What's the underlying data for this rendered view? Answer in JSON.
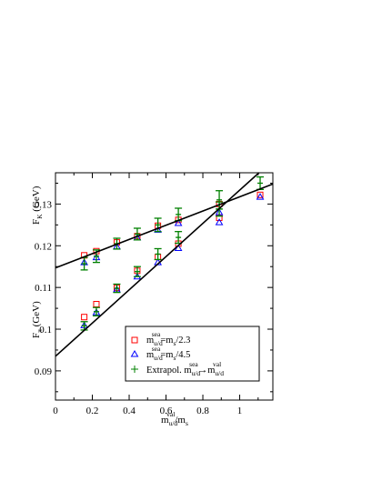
{
  "chart_data": {
    "type": "scatter",
    "xlim": [
      0,
      1.18
    ],
    "ylim": [
      0.083,
      0.1375
    ],
    "x_ticks": [
      "0",
      "0.2",
      "0.4",
      "0.6",
      "0.8",
      "1"
    ],
    "x_tick_values": [
      0,
      0.2,
      0.4,
      0.6,
      0.8,
      1.0
    ],
    "y_ticks": [
      "0.09",
      "0.1",
      "0.11",
      "0.12",
      "0.13"
    ],
    "y_tick_values": [
      0.09,
      0.1,
      0.11,
      0.12,
      0.13
    ],
    "xlabel": {
      "main": "m",
      "sub1": "u/d",
      "sup": "val",
      "tail": "/m",
      "sub2": "s"
    },
    "ylabel_upper": {
      "main": "F",
      "sub": "K",
      "tail": " (GeV)"
    },
    "ylabel_lower": {
      "main": "F",
      "sub": "π",
      "tail": " (GeV)"
    },
    "grid": false,
    "legend_position": "bottom-right",
    "series": [
      {
        "marker": "square",
        "color": "#ff0000",
        "legend": {
          "main": "m",
          "sub": "u/d",
          "sup": "sea",
          "tail": "=m",
          "sub2": "s",
          "end": "/2.3"
        },
        "points": [
          {
            "x": 0.156,
            "y": 0.1177
          },
          {
            "x": 0.222,
            "y": 0.1187
          },
          {
            "x": 0.333,
            "y": 0.1208
          },
          {
            "x": 0.444,
            "y": 0.1223
          },
          {
            "x": 0.556,
            "y": 0.1248
          },
          {
            "x": 0.667,
            "y": 0.1262
          },
          {
            "x": 0.889,
            "y": 0.1267
          },
          {
            "x": 1.111,
            "y": 0.1322
          },
          {
            "x": 0.156,
            "y": 0.1029
          },
          {
            "x": 0.222,
            "y": 0.106
          },
          {
            "x": 0.333,
            "y": 0.1099
          },
          {
            "x": 0.444,
            "y": 0.114
          },
          {
            "x": 0.556,
            "y": 0.1173
          },
          {
            "x": 0.667,
            "y": 0.1205
          },
          {
            "x": 0.889,
            "y": 0.13
          }
        ]
      },
      {
        "marker": "triangle",
        "color": "#0000ff",
        "legend": {
          "main": "m",
          "sub": "u/d",
          "sup": "sea",
          "tail": "=m",
          "sub2": "s",
          "end": "/4.5"
        },
        "points": [
          {
            "x": 0.156,
            "y": 0.116
          },
          {
            "x": 0.222,
            "y": 0.1172
          },
          {
            "x": 0.333,
            "y": 0.1198
          },
          {
            "x": 0.444,
            "y": 0.1219
          },
          {
            "x": 0.556,
            "y": 0.1238
          },
          {
            "x": 0.667,
            "y": 0.1254
          },
          {
            "x": 0.889,
            "y": 0.1256
          },
          {
            "x": 1.111,
            "y": 0.1317
          },
          {
            "x": 0.156,
            "y": 0.1009
          },
          {
            "x": 0.222,
            "y": 0.104
          },
          {
            "x": 0.333,
            "y": 0.1095
          },
          {
            "x": 0.444,
            "y": 0.1126
          },
          {
            "x": 0.556,
            "y": 0.116
          },
          {
            "x": 0.667,
            "y": 0.1194
          },
          {
            "x": 0.889,
            "y": 0.128
          }
        ]
      },
      {
        "marker": "plus",
        "color": "#008000",
        "legend": {
          "main": "Extrapol. m",
          "sub": "u/d",
          "sup": "sea",
          "tail": "→m",
          "sub2": "u/d",
          "sup2": "val"
        },
        "points": [
          {
            "x": 0.156,
            "y": 0.1157,
            "err": 0.0015
          },
          {
            "x": 0.222,
            "y": 0.1175,
            "err": 0.0015
          },
          {
            "x": 0.333,
            "y": 0.1205,
            "err": 0.0013
          },
          {
            "x": 0.444,
            "y": 0.1228,
            "err": 0.0014
          },
          {
            "x": 0.556,
            "y": 0.125,
            "err": 0.0016
          },
          {
            "x": 0.667,
            "y": 0.1275,
            "err": 0.0015
          },
          {
            "x": 0.889,
            "y": 0.131,
            "err": 0.0022
          },
          {
            "x": 1.111,
            "y": 0.135,
            "err": 0.0015
          },
          {
            "x": 0.156,
            "y": 0.1008,
            "err": 0.001
          },
          {
            "x": 0.222,
            "y": 0.1042,
            "err": 0.001
          },
          {
            "x": 0.333,
            "y": 0.1098,
            "err": 0.001
          },
          {
            "x": 0.444,
            "y": 0.1138,
            "err": 0.0012
          },
          {
            "x": 0.556,
            "y": 0.118,
            "err": 0.0013
          },
          {
            "x": 0.667,
            "y": 0.122,
            "err": 0.0014
          },
          {
            "x": 0.889,
            "y": 0.1288,
            "err": 0.0017
          }
        ]
      }
    ],
    "fit_lines": [
      {
        "color": "#000000",
        "points": [
          {
            "x": 0.0,
            "y": 0.1147
          },
          {
            "x": 1.18,
            "y": 0.1348
          }
        ]
      },
      {
        "color": "#000000",
        "points": [
          {
            "x": 0.0,
            "y": 0.0935
          },
          {
            "x": 1.18,
            "y": 0.1405
          }
        ]
      }
    ]
  }
}
